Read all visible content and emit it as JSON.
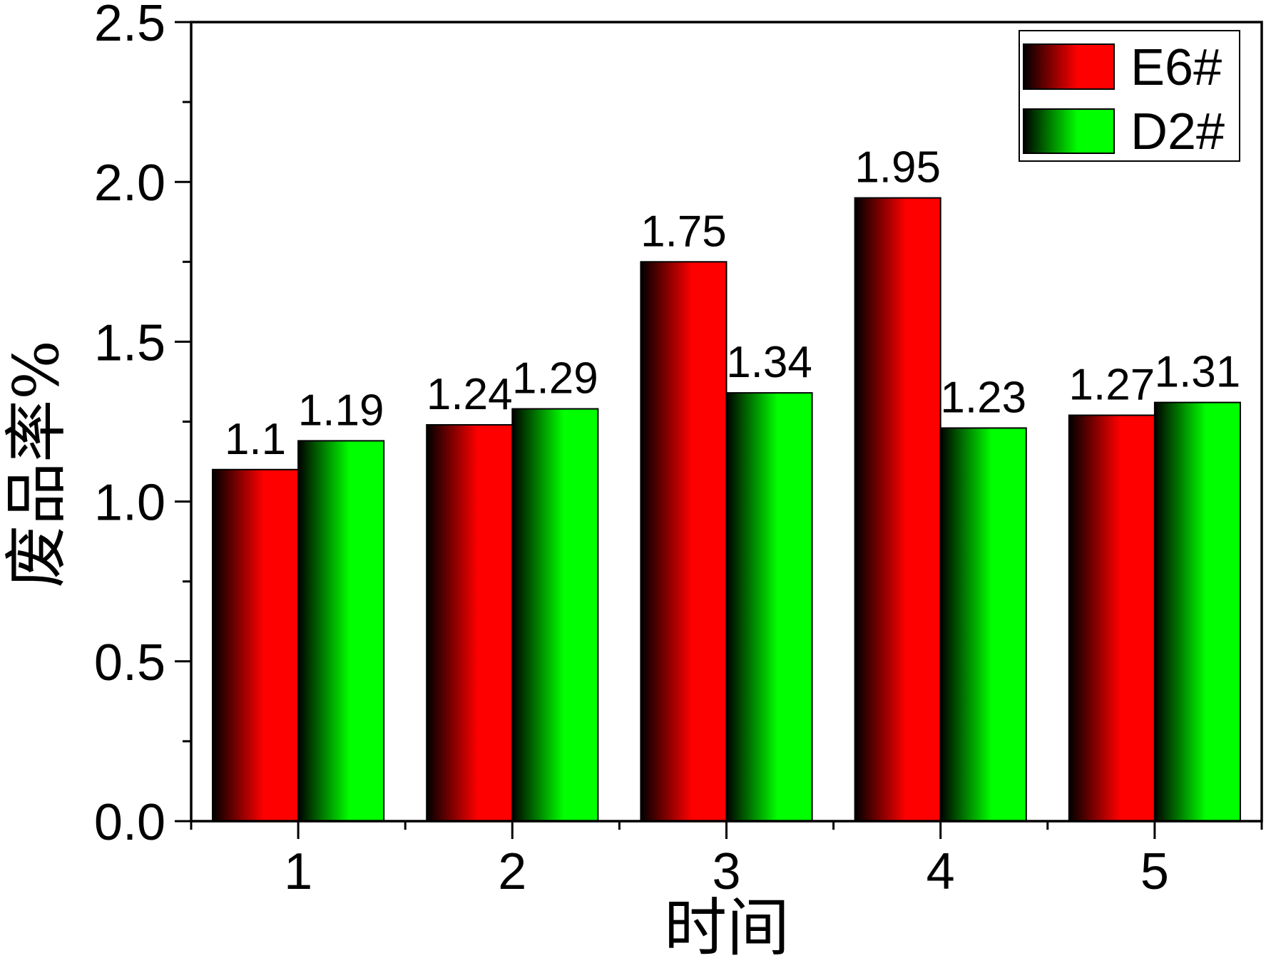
{
  "chart_data": {
    "type": "bar",
    "xlabel": "时间",
    "ylabel": "废品率%",
    "categories": [
      "1",
      "2",
      "3",
      "4",
      "5"
    ],
    "series": [
      {
        "name": "E6#",
        "color": "#ff0000",
        "values": [
          1.1,
          1.24,
          1.75,
          1.95,
          1.27
        ]
      },
      {
        "name": "D2#",
        "color": "#00ff00",
        "values": [
          1.19,
          1.29,
          1.34,
          1.23,
          1.31
        ]
      }
    ],
    "ylim": [
      0,
      2.5
    ],
    "yticks": [
      0,
      0.5,
      1,
      1.5,
      2,
      2.5
    ],
    "ytick_labels": [
      "0.0",
      "0.5",
      "1.0",
      "1.5",
      "2.0",
      "2.5"
    ],
    "data_labels": true,
    "grid": false,
    "legend_position": "top-right"
  }
}
